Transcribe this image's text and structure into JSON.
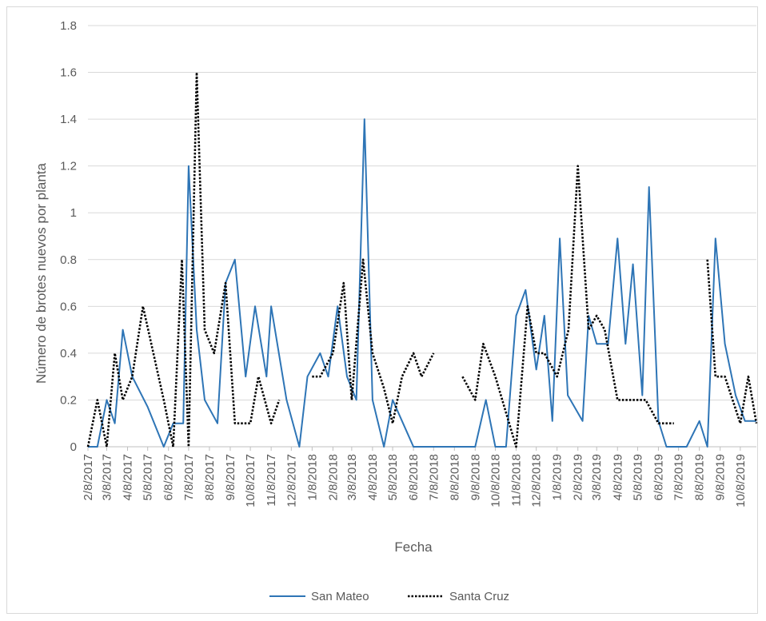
{
  "chart_data": {
    "type": "line",
    "title": "",
    "xlabel": "Fecha",
    "ylabel": "Número de brotes nuevos por planta",
    "ylim": [
      0,
      1.8
    ],
    "yticks": [
      "0",
      "0.2",
      "0.4",
      "0.6",
      "0.8",
      "1",
      "1.2",
      "1.4",
      "1.6",
      "1.8"
    ],
    "xlim": [
      "2017-02-08",
      "2019-11-01"
    ],
    "xtick_labels": [
      "2/8/2017",
      "3/8/2017",
      "4/8/2017",
      "5/8/2017",
      "6/8/2017",
      "7/8/2017",
      "8/8/2017",
      "9/8/2017",
      "10/8/2017",
      "11/8/2017",
      "12/8/2017",
      "1/8/2018",
      "2/8/2018",
      "3/8/2018",
      "4/8/2018",
      "5/8/2018",
      "6/8/2018",
      "7/8/2018",
      "8/8/2018",
      "9/8/2018",
      "10/8/2018",
      "11/8/2018",
      "12/8/2018",
      "1/8/2019",
      "2/8/2019",
      "3/8/2019",
      "4/8/2019",
      "5/8/2019",
      "6/8/2019",
      "7/8/2019",
      "8/8/2019",
      "9/8/2019",
      "10/8/2019"
    ],
    "grid": true,
    "legend_position": "bottom",
    "series": [
      {
        "name": "San Mateo",
        "color": "#2e75b6",
        "style": "solid",
        "points": [
          [
            "2017-02-08",
            0
          ],
          [
            "2017-02-22",
            0
          ],
          [
            "2017-03-08",
            0.2
          ],
          [
            "2017-03-20",
            0.1
          ],
          [
            "2017-04-01",
            0.5
          ],
          [
            "2017-04-15",
            0.3
          ],
          [
            "2017-05-08",
            0.17
          ],
          [
            "2017-06-01",
            0
          ],
          [
            "2017-06-15",
            0.1
          ],
          [
            "2017-06-30",
            0.1
          ],
          [
            "2017-07-08",
            1.2
          ],
          [
            "2017-07-20",
            0.5
          ],
          [
            "2017-08-01",
            0.2
          ],
          [
            "2017-08-20",
            0.1
          ],
          [
            "2017-09-01",
            0.7
          ],
          [
            "2017-09-15",
            0.8
          ],
          [
            "2017-10-01",
            0.3
          ],
          [
            "2017-10-15",
            0.6
          ],
          [
            "2017-11-01",
            0.3
          ],
          [
            "2017-11-08",
            0.6
          ],
          [
            "2017-12-01",
            0.2
          ],
          [
            "2017-12-20",
            0
          ],
          [
            "2018-01-01",
            0.3
          ],
          [
            "2018-01-20",
            0.4
          ],
          [
            "2018-02-01",
            0.3
          ],
          [
            "2018-02-15",
            0.6
          ],
          [
            "2018-03-01",
            0.3
          ],
          [
            "2018-03-15",
            0.2
          ],
          [
            "2018-03-27",
            1.4
          ],
          [
            "2018-04-08",
            0.2
          ],
          [
            "2018-04-25",
            0
          ],
          [
            "2018-05-08",
            0.2
          ],
          [
            "2018-06-08",
            0
          ],
          [
            "2018-09-08",
            0
          ],
          [
            "2018-09-24",
            0.2
          ],
          [
            "2018-10-08",
            0
          ],
          [
            "2018-10-24",
            0
          ],
          [
            "2018-11-08",
            0.56
          ],
          [
            "2018-11-22",
            0.67
          ],
          [
            "2018-12-08",
            0.33
          ],
          [
            "2018-12-20",
            0.56
          ],
          [
            "2019-01-01",
            0.11
          ],
          [
            "2019-01-12",
            0.89
          ],
          [
            "2019-01-24",
            0.22
          ],
          [
            "2019-02-15",
            0.11
          ],
          [
            "2019-02-24",
            0.56
          ],
          [
            "2019-03-08",
            0.44
          ],
          [
            "2019-03-25",
            0.44
          ],
          [
            "2019-04-08",
            0.89
          ],
          [
            "2019-04-20",
            0.44
          ],
          [
            "2019-05-01",
            0.78
          ],
          [
            "2019-05-15",
            0.22
          ],
          [
            "2019-05-25",
            1.11
          ],
          [
            "2019-06-08",
            0.11
          ],
          [
            "2019-06-20",
            0
          ],
          [
            "2019-07-20",
            0
          ],
          [
            "2019-08-08",
            0.11
          ],
          [
            "2019-08-20",
            0
          ],
          [
            "2019-09-01",
            0.89
          ],
          [
            "2019-09-15",
            0.44
          ],
          [
            "2019-10-01",
            0.22
          ],
          [
            "2019-10-15",
            0.11
          ],
          [
            "2019-11-01",
            0.11
          ]
        ]
      },
      {
        "name": "Santa Cruz",
        "color": "#000000",
        "style": "dotted",
        "points": [
          [
            "2017-02-08",
            0
          ],
          [
            "2017-02-22",
            0.2
          ],
          [
            "2017-03-08",
            0
          ],
          [
            "2017-03-20",
            0.4
          ],
          [
            "2017-04-01",
            0.2
          ],
          [
            "2017-04-15",
            0.3
          ],
          [
            "2017-05-01",
            0.6
          ],
          [
            "2017-06-01",
            0.2
          ],
          [
            "2017-06-15",
            0
          ],
          [
            "2017-06-28",
            0.8
          ],
          [
            "2017-07-08",
            0
          ],
          [
            "2017-07-20",
            1.6
          ],
          [
            "2017-08-01",
            0.5
          ],
          [
            "2017-08-15",
            0.4
          ],
          [
            "2017-09-01",
            0.7
          ],
          [
            "2017-09-15",
            0.1
          ],
          [
            "2017-10-08",
            0.1
          ],
          [
            "2017-10-20",
            0.3
          ],
          [
            "2017-11-08",
            0.1
          ],
          [
            "2017-11-20",
            0.2
          ],
          null,
          [
            "2018-01-08",
            0.3
          ],
          [
            "2018-01-20",
            0.3
          ],
          [
            "2018-02-08",
            0.4
          ],
          [
            "2018-02-24",
            0.7
          ],
          [
            "2018-03-08",
            0.2
          ],
          [
            "2018-03-25",
            0.8
          ],
          [
            "2018-04-08",
            0.4
          ],
          [
            "2018-04-25",
            0.25
          ],
          [
            "2018-05-08",
            0.1
          ],
          [
            "2018-05-22",
            0.3
          ],
          [
            "2018-06-08",
            0.4
          ],
          [
            "2018-06-20",
            0.3
          ],
          [
            "2018-07-08",
            0.4
          ],
          null,
          [
            "2018-08-20",
            0.3
          ],
          [
            "2018-09-08",
            0.2
          ],
          [
            "2018-09-20",
            0.44
          ],
          [
            "2018-10-08",
            0.3
          ],
          [
            "2018-11-08",
            0
          ],
          [
            "2018-11-25",
            0.6
          ],
          [
            "2018-12-08",
            0.4
          ],
          [
            "2018-12-20",
            0.4
          ],
          [
            "2019-01-08",
            0.3
          ],
          [
            "2019-01-25",
            0.5
          ],
          [
            "2019-02-08",
            1.2
          ],
          [
            "2019-02-24",
            0.5
          ],
          [
            "2019-03-08",
            0.56
          ],
          [
            "2019-03-20",
            0.5
          ],
          [
            "2019-04-08",
            0.2
          ],
          [
            "2019-05-08",
            0.2
          ],
          [
            "2019-05-20",
            0.2
          ],
          [
            "2019-06-08",
            0.1
          ],
          [
            "2019-07-01",
            0.1
          ],
          null,
          [
            "2019-08-20",
            0.8
          ],
          [
            "2019-09-01",
            0.3
          ],
          [
            "2019-09-15",
            0.3
          ],
          [
            "2019-10-08",
            0.1
          ],
          [
            "2019-10-20",
            0.3
          ],
          [
            "2019-11-01",
            0.1
          ]
        ]
      }
    ]
  }
}
